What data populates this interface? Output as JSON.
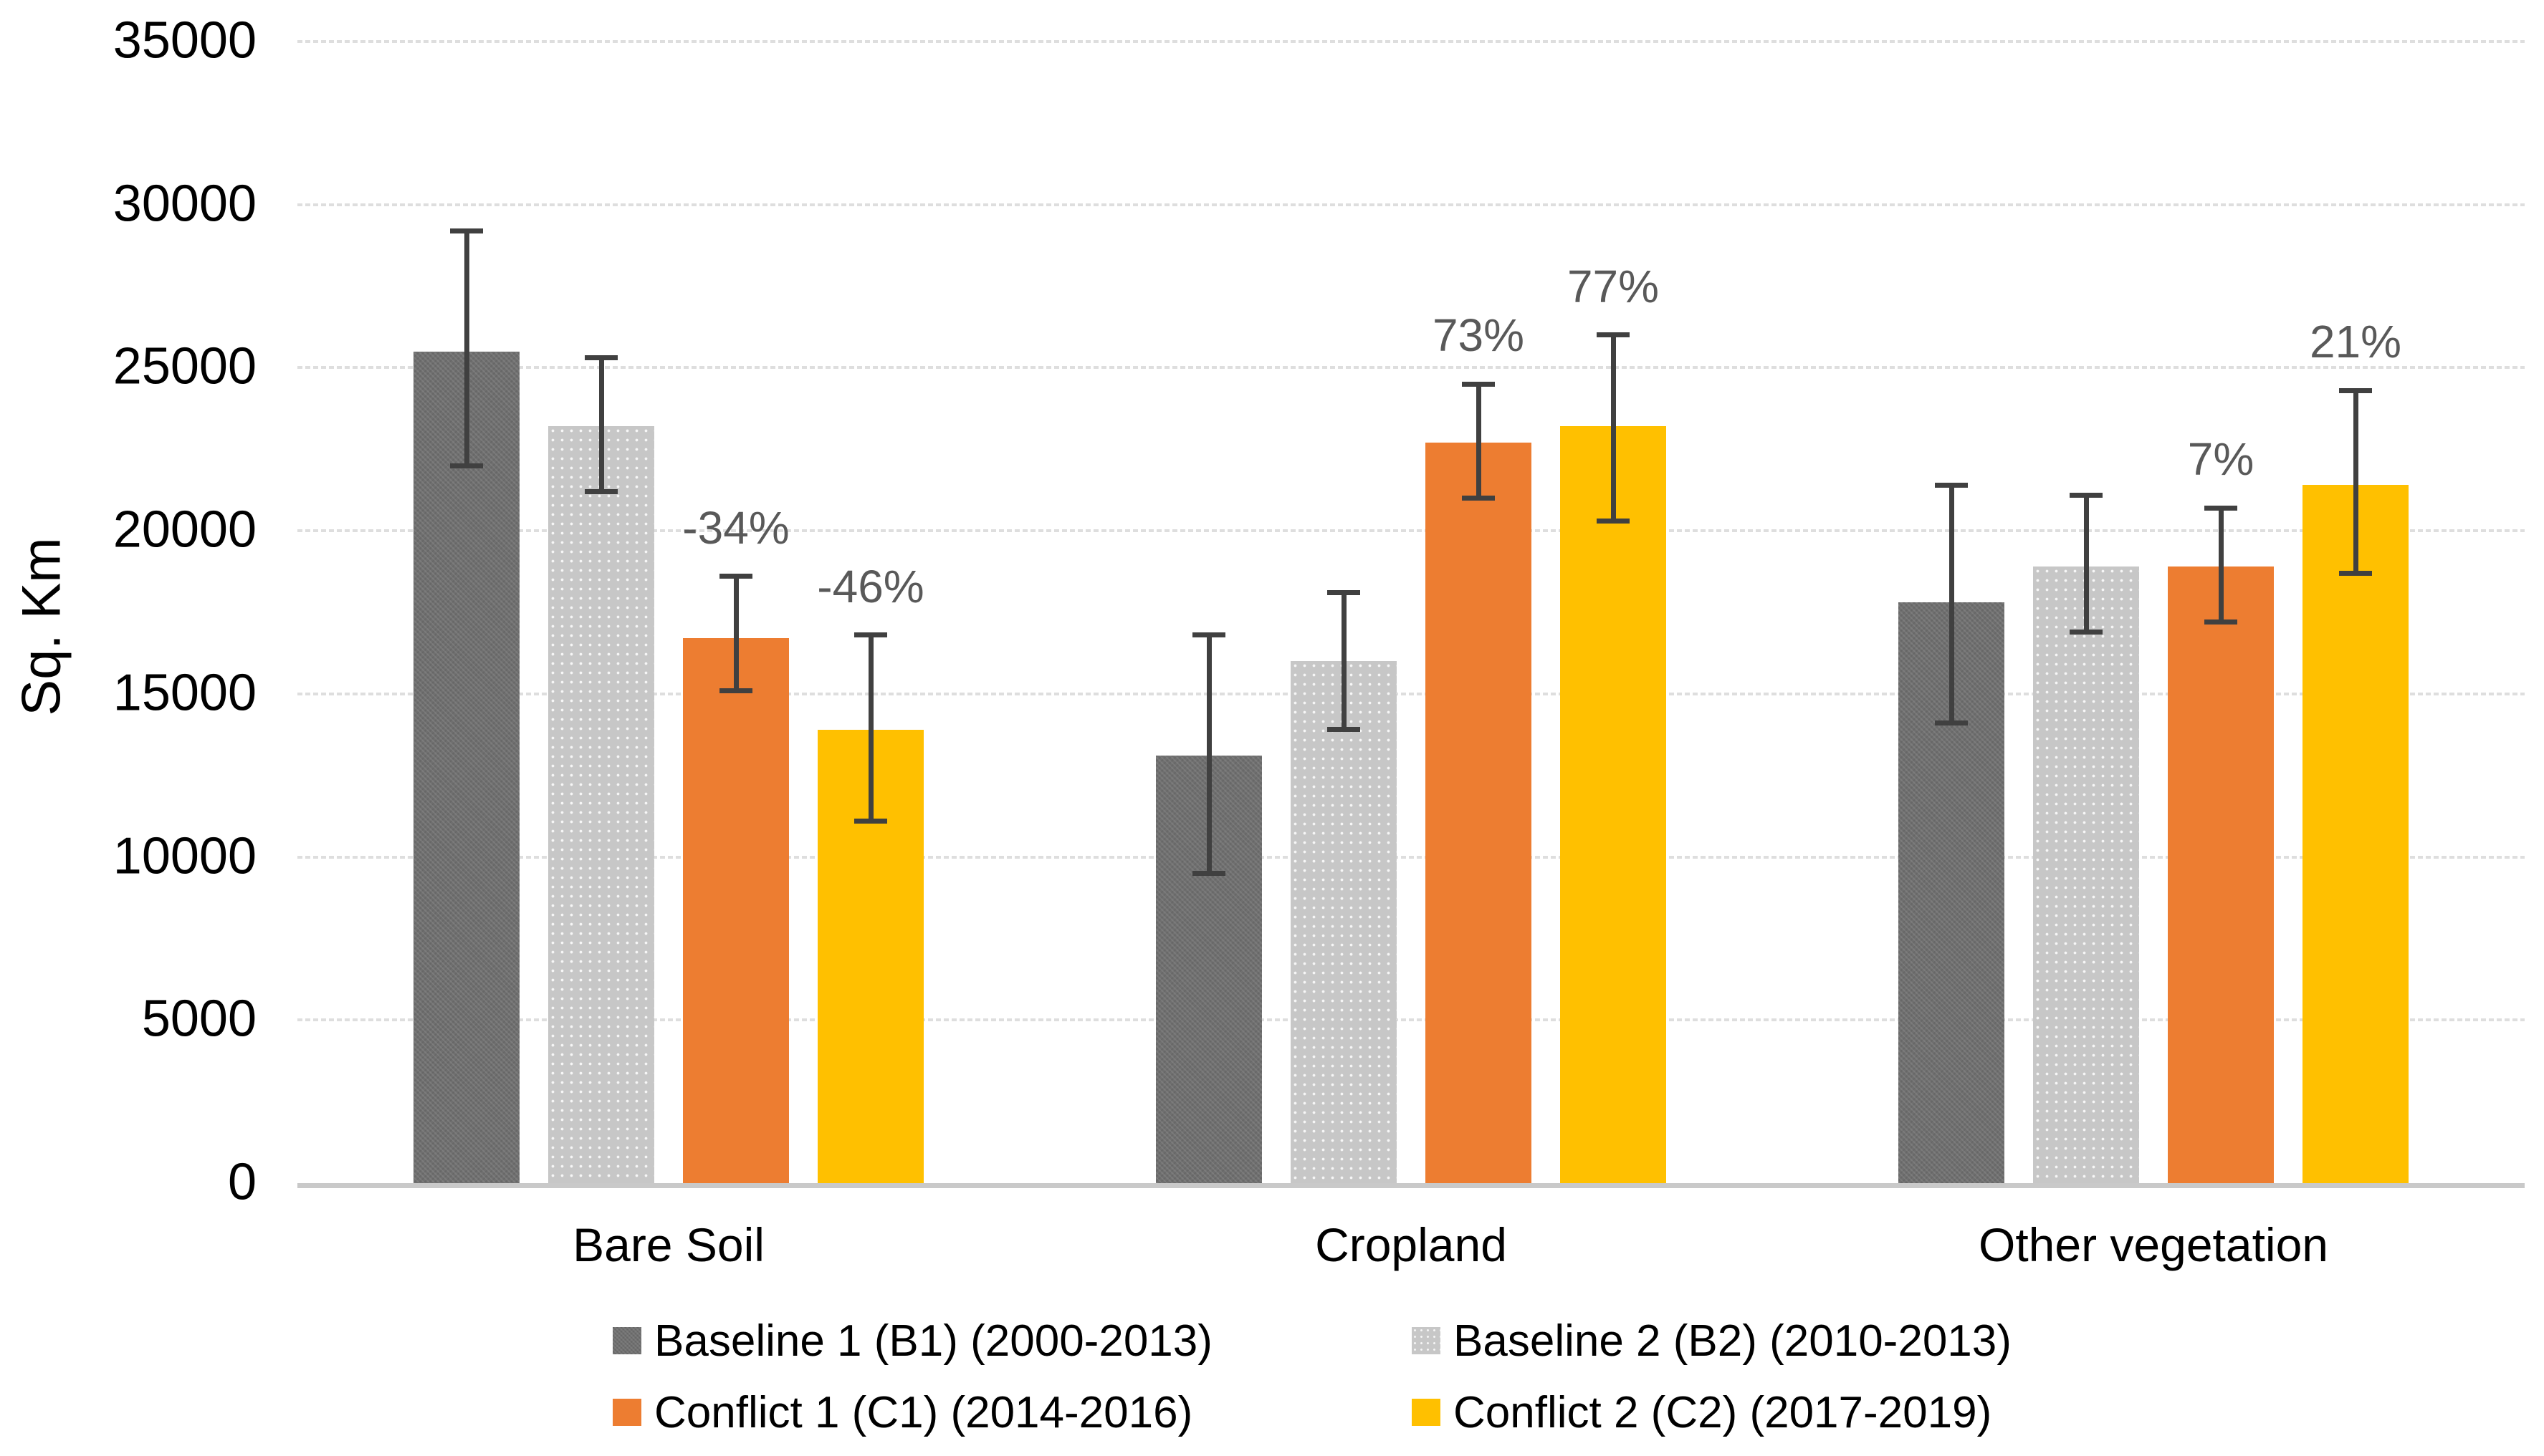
{
  "chart_data": {
    "type": "bar",
    "title": "",
    "xlabel": "",
    "ylabel": "Sq. Km",
    "ylim": [
      0,
      35000
    ],
    "ytick_step": 5000,
    "yticks": [
      0,
      5000,
      10000,
      15000,
      20000,
      25000,
      30000,
      35000
    ],
    "grid": "horizontal-dashed",
    "gridline_color": "#dedede",
    "axis_line_color": "#c9c9c9",
    "error_bar_color": "#404040",
    "annotation_color": "#595959",
    "legend_position": "bottom-two-columns",
    "categories": [
      "Bare Soil",
      "Cropland",
      "Other vegetation"
    ],
    "series": [
      {
        "name": "Baseline 1 (B1) (2000-2013)",
        "color": "#6F6F6F",
        "fill_pattern": "weave",
        "values": [
          25500,
          13100,
          17800
        ],
        "error_low": [
          22000,
          9500,
          14100
        ],
        "error_high": [
          29200,
          16800,
          21400
        ],
        "annotations": [
          null,
          null,
          null
        ]
      },
      {
        "name": "Baseline 2 (B2) (2010-2013)",
        "color": "#C7C7C7",
        "fill_pattern": "dots",
        "values": [
          23200,
          16000,
          18900
        ],
        "error_low": [
          21200,
          13900,
          16900
        ],
        "error_high": [
          25300,
          18100,
          21100
        ],
        "annotations": [
          null,
          null,
          null
        ]
      },
      {
        "name": "Conflict 1 (C1) (2014-2016)",
        "color": "#ED7D31",
        "fill_pattern": "solid",
        "values": [
          16700,
          22700,
          18900
        ],
        "error_low": [
          15100,
          21000,
          17200
        ],
        "error_high": [
          18600,
          24500,
          20700
        ],
        "annotations": [
          "-34%",
          "73%",
          "7%"
        ]
      },
      {
        "name": "Conflict 2 (C2) (2017-2019)",
        "color": "#FFC000",
        "fill_pattern": "solid",
        "values": [
          13900,
          23200,
          21400
        ],
        "error_low": [
          11100,
          20300,
          18700
        ],
        "error_high": [
          16800,
          26000,
          24300
        ],
        "annotations": [
          "-46%",
          "77%",
          "21%"
        ]
      }
    ]
  }
}
